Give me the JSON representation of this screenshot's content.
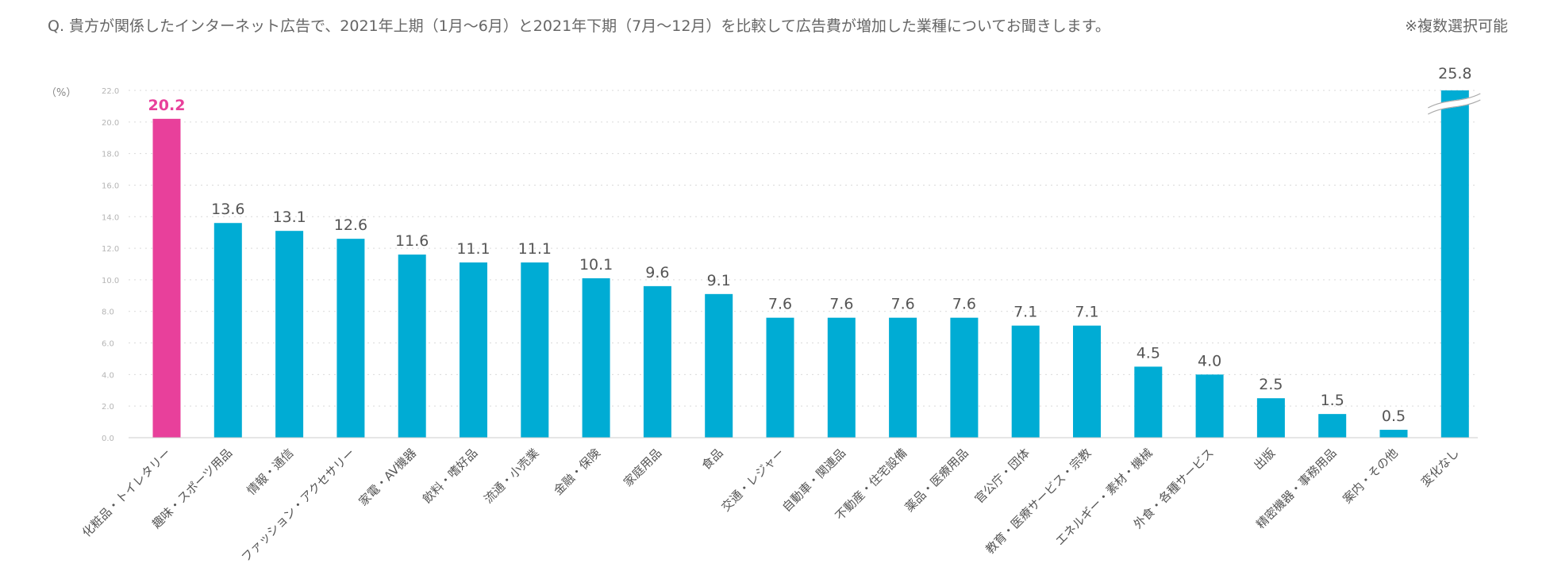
{
  "question": {
    "text": "Q. 貴方が関係したインターネット広告で、2021年上期（1月～6月）と2021年下期（7月～12月）を比較して広告費が増加した業種についてお聞きします。",
    "note": "※複数選択可能"
  },
  "chart_data": {
    "type": "bar",
    "title": "",
    "xlabel": "",
    "ylabel": "（%）",
    "ylim": [
      0,
      22
    ],
    "yticks": [
      "0.0",
      "2.0",
      "4.0",
      "6.0",
      "8.0",
      "10.0",
      "12.0",
      "14.0",
      "16.0",
      "18.0",
      "20.0",
      "22.0"
    ],
    "grid": true,
    "axis_break": {
      "category": "変化なし",
      "note": "bar exceeds axis maximum"
    },
    "categories": [
      "化粧品・トイレタリー",
      "趣味・スポーツ用品",
      "情報・通信",
      "ファッション・アクセサリー",
      "家電・AV機器",
      "飲料・嗜好品",
      "流通・小売業",
      "金融・保険",
      "家庭用品",
      "食品",
      "交通・レジャー",
      "自動車・関連品",
      "不動産・住宅設備",
      "薬品・医療用品",
      "官公庁・団体",
      "教育・医療サービス・宗教",
      "エネルギー・素材・機械",
      "外食・各種サービス",
      "出版",
      "精密機器・事務用品",
      "案内・その他",
      "変化なし"
    ],
    "values": [
      20.2,
      13.6,
      13.1,
      12.6,
      11.6,
      11.1,
      11.1,
      10.1,
      9.6,
      9.1,
      7.6,
      7.6,
      7.6,
      7.6,
      7.1,
      7.1,
      4.5,
      4.0,
      2.5,
      1.5,
      0.5,
      25.8
    ],
    "value_labels": [
      "20.2",
      "13.6",
      "13.1",
      "12.6",
      "11.6",
      "11.1",
      "11.1",
      "10.1",
      "9.6",
      "9.1",
      "7.6",
      "7.6",
      "7.6",
      "7.6",
      "7.1",
      "7.1",
      "4.5",
      "4.0",
      "2.5",
      "1.5",
      "0.5",
      "25.8"
    ],
    "highlight_index": 0,
    "colors": {
      "bar": "#00acd4",
      "highlight": "#e8409b",
      "grid": "#d9d9d9",
      "axis": "#cccccc"
    }
  }
}
